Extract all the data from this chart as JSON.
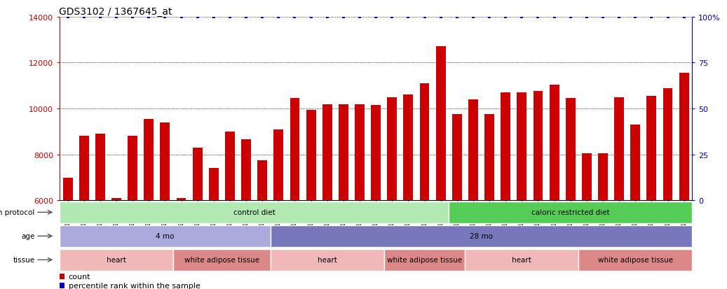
{
  "title": "GDS3102 / 1367645_at",
  "samples": [
    "GSM154903",
    "GSM154904",
    "GSM154905",
    "GSM154906",
    "GSM154907",
    "GSM154908",
    "GSM154920",
    "GSM154921",
    "GSM154922",
    "GSM154924",
    "GSM154925",
    "GSM154932",
    "GSM154933",
    "GSM154896",
    "GSM154897",
    "GSM154898",
    "GSM154899",
    "GSM154900",
    "GSM154901",
    "GSM154902",
    "GSM154918",
    "GSM154919",
    "GSM154929",
    "GSM154930",
    "GSM154931",
    "GSM154909",
    "GSM154910",
    "GSM154911",
    "GSM154912",
    "GSM154913",
    "GSM154914",
    "GSM154915",
    "GSM154916",
    "GSM154917",
    "GSM154923",
    "GSM154926",
    "GSM154927",
    "GSM154928",
    "GSM154934"
  ],
  "counts": [
    7000,
    8800,
    8900,
    6100,
    8800,
    9550,
    9400,
    6100,
    8300,
    7400,
    9000,
    8650,
    7750,
    9100,
    10450,
    9950,
    10200,
    10200,
    10200,
    10150,
    10500,
    10600,
    11100,
    12700,
    9750,
    10400,
    9750,
    10700,
    10700,
    10750,
    11050,
    10450,
    8050,
    8050,
    10500,
    9300,
    10550,
    10900,
    11550
  ],
  "ylim_left": [
    6000,
    14000
  ],
  "ylim_right": [
    0,
    100
  ],
  "yticks_left": [
    6000,
    8000,
    10000,
    12000,
    14000
  ],
  "yticks_right": [
    0,
    25,
    50,
    75,
    100
  ],
  "bar_color": "#cc0000",
  "dot_color": "#0000bb",
  "percentile_color": "#0000bb",
  "fig_bg": "#ffffff",
  "chart_bg": "#ffffff",
  "growth_segments": [
    {
      "label": "control diet",
      "start": 0,
      "end": 24,
      "color": "#b2e8b2"
    },
    {
      "label": "caloric restricted diet",
      "start": 24,
      "end": 39,
      "color": "#55cc55"
    }
  ],
  "age_segments": [
    {
      "label": "4 mo",
      "start": 0,
      "end": 13,
      "color": "#aaaadd"
    },
    {
      "label": "28 mo",
      "start": 13,
      "end": 39,
      "color": "#7777bb"
    }
  ],
  "tissue_segments": [
    {
      "label": "heart",
      "start": 0,
      "end": 7,
      "color": "#f0b8b8"
    },
    {
      "label": "white adipose tissue",
      "start": 7,
      "end": 13,
      "color": "#dd8888"
    },
    {
      "label": "heart",
      "start": 13,
      "end": 20,
      "color": "#f0b8b8"
    },
    {
      "label": "white adipose tissue",
      "start": 20,
      "end": 25,
      "color": "#dd8888"
    },
    {
      "label": "heart",
      "start": 25,
      "end": 32,
      "color": "#f0b8b8"
    },
    {
      "label": "white adipose tissue",
      "start": 32,
      "end": 39,
      "color": "#dd8888"
    }
  ],
  "row_label_names": [
    "growth protocol",
    "age",
    "tissue"
  ],
  "legend_count_color": "#cc0000",
  "legend_pct_color": "#0000bb"
}
